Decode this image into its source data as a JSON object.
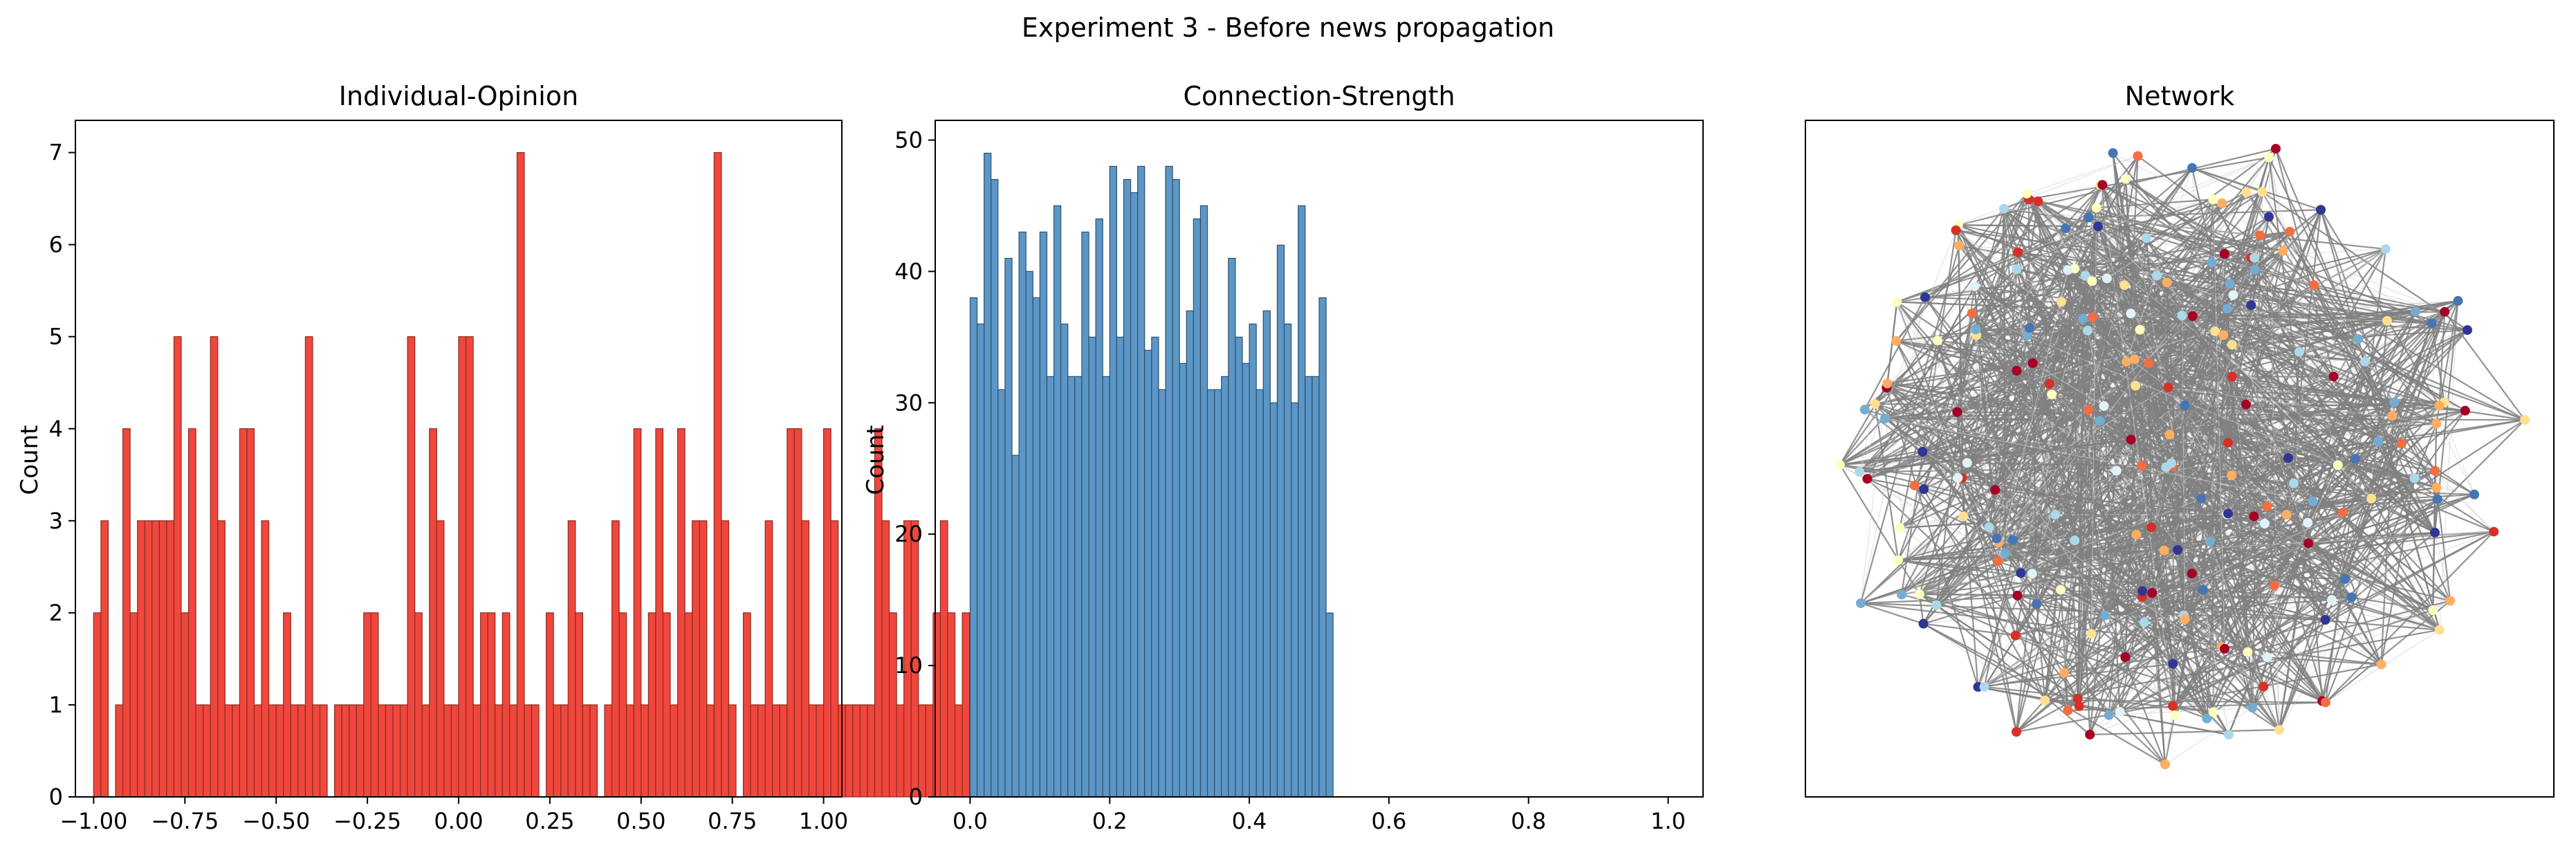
{
  "figure": {
    "title": "Experiment 3 - Before news propagation"
  },
  "chart_data": [
    {
      "type": "bar",
      "title": "Individual-Opinion",
      "xlabel": "",
      "ylabel": "Count",
      "xlim": [
        -1.05,
        1.05
      ],
      "ylim": [
        0,
        7.35
      ],
      "bin_start": -1.0,
      "bin_width": 0.02,
      "values": [
        2,
        3,
        0,
        1,
        4,
        2,
        3,
        3,
        3,
        3,
        3,
        5,
        2,
        4,
        1,
        1,
        5,
        3,
        1,
        1,
        4,
        4,
        1,
        3,
        1,
        1,
        2,
        1,
        1,
        5,
        1,
        1,
        0,
        1,
        1,
        1,
        1,
        2,
        2,
        1,
        1,
        1,
        1,
        5,
        2,
        1,
        4,
        3,
        1,
        1,
        5,
        5,
        1,
        2,
        2,
        1,
        2,
        1,
        7,
        1,
        1,
        0,
        2,
        1,
        1,
        3,
        2,
        1,
        1,
        0,
        1,
        3,
        2,
        1,
        4,
        1,
        2,
        4,
        2,
        1,
        4,
        2,
        3,
        3,
        1,
        7,
        3,
        1,
        0,
        2,
        1,
        1,
        3,
        1,
        1,
        4,
        4,
        3,
        1,
        1,
        4,
        3,
        1,
        1,
        1,
        1,
        1,
        4,
        3,
        2,
        1,
        3,
        3,
        1,
        1,
        2,
        3,
        2,
        1,
        2,
        1,
        4,
        4,
        1,
        2,
        1,
        2,
        5,
        1,
        2,
        2,
        2
      ],
      "xticks": [
        -1.0,
        -0.75,
        -0.5,
        -0.25,
        0.0,
        0.25,
        0.5,
        0.75,
        1.0
      ],
      "xtick_labels": [
        "−1.00",
        "−0.75",
        "−0.50",
        "−0.25",
        "0.00",
        "0.25",
        "0.50",
        "0.75",
        "1.00"
      ],
      "yticks": [
        0,
        1,
        2,
        3,
        4,
        5,
        6,
        7
      ],
      "ytick_labels": [
        "0",
        "1",
        "2",
        "3",
        "4",
        "5",
        "6",
        "7"
      ],
      "colors": {
        "fill": "#f0473c",
        "edge": "#8b2a24"
      }
    },
    {
      "type": "bar",
      "title": "Connection-Strength",
      "xlabel": "",
      "ylabel": "Count",
      "xlim": [
        -0.05,
        1.05
      ],
      "ylim": [
        0,
        51.5
      ],
      "bin_start": 0.0,
      "bin_width": 0.01,
      "values": [
        38,
        36,
        49,
        47,
        31,
        41,
        26,
        43,
        40,
        38,
        43,
        32,
        45,
        36,
        32,
        32,
        43,
        35,
        44,
        32,
        48,
        35,
        47,
        46,
        48,
        34,
        35,
        31,
        48,
        47,
        33,
        37,
        44,
        45,
        31,
        31,
        32,
        41,
        35,
        33,
        36,
        31,
        37,
        30,
        42,
        36,
        30,
        45,
        32,
        32,
        38,
        14
      ],
      "xticks": [
        0.0,
        0.2,
        0.4,
        0.6,
        0.8,
        1.0
      ],
      "xtick_labels": [
        "0.0",
        "0.2",
        "0.4",
        "0.6",
        "0.8",
        "1.0"
      ],
      "yticks": [
        0,
        10,
        20,
        30,
        40,
        50
      ],
      "ytick_labels": [
        "0",
        "10",
        "20",
        "30",
        "40",
        "50"
      ],
      "colors": {
        "fill": "#5b96c6",
        "edge": "#2f506b"
      }
    },
    {
      "type": "network",
      "title": "Network",
      "node_count": 220,
      "colors": {
        "edge": "#808080",
        "faint_edge": "#d0d0d0",
        "node_palette": [
          "#a50026",
          "#d73027",
          "#f46d43",
          "#fdae61",
          "#fee090",
          "#ffffbf",
          "#e0f3f8",
          "#abd9e9",
          "#74add1",
          "#4575b4",
          "#313695"
        ]
      }
    }
  ]
}
